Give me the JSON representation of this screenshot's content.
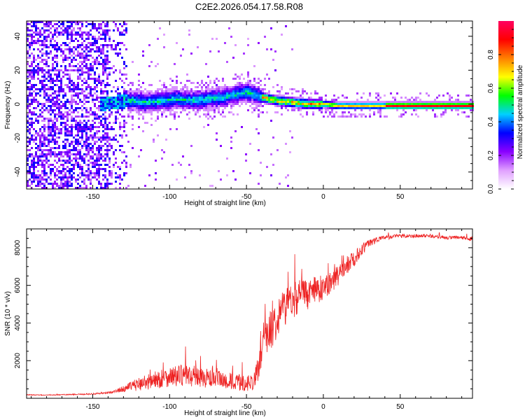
{
  "title": "C2E2.2026.054.17.58.R08",
  "chart_data": [
    {
      "type": "heatmap",
      "xlabel": "Height of straight line (km)",
      "ylabel": "Frequency (Hz)",
      "xlim": [
        -193,
        97
      ],
      "ylim": [
        -50,
        49
      ],
      "xticks": [
        -150,
        -100,
        -50,
        0,
        50
      ],
      "xtick_labels": [
        "-150",
        "-100",
        "-50",
        "0",
        "50"
      ],
      "yticks": [
        -40,
        -20,
        0,
        20,
        40
      ],
      "ytick_labels": [
        "-40",
        "-20",
        "0",
        "20",
        "40"
      ],
      "colorbar": {
        "label": "Normalized spectral amplitude",
        "range": [
          0,
          1
        ],
        "ticks": [
          0,
          0.2,
          0.4,
          0.6,
          0.8
        ],
        "tick_labels": [
          "0.0",
          "0.2",
          "0.4",
          "0.6",
          "0.8"
        ],
        "colormap": [
          "#ffffff",
          "#e0a0ff",
          "#8a00ff",
          "#0000ff",
          "#00d0ff",
          "#00ff00",
          "#ffff00",
          "#ff8000",
          "#ff0000",
          "#ff0060"
        ]
      },
      "centerline": {
        "x": [
          -145,
          -135,
          -125,
          -115,
          -105,
          -95,
          -85,
          -75,
          -65,
          -55,
          -50,
          -45,
          -40,
          -35,
          -30,
          -20,
          -10,
          0,
          10,
          20,
          30,
          40,
          50,
          60,
          70,
          80,
          90,
          97
        ],
        "y": [
          0,
          1,
          2,
          1,
          2,
          3,
          2,
          3,
          4,
          6,
          7,
          6,
          4,
          3,
          2,
          1,
          0,
          0,
          -1,
          -1,
          -1,
          -1,
          -1,
          -1,
          -1,
          -1,
          -1,
          -1
        ]
      }
    },
    {
      "type": "line",
      "xlabel": "Height of straight line (km)",
      "ylabel": "SNR (10 * v/v)",
      "xlim": [
        -193,
        97
      ],
      "ylim": [
        0,
        9000
      ],
      "xticks": [
        -150,
        -100,
        -50,
        0,
        50
      ],
      "xtick_labels": [
        "-150",
        "-100",
        "-50",
        "0",
        "50"
      ],
      "yticks": [
        2000,
        4000,
        6000,
        8000
      ],
      "ytick_labels": [
        "2000",
        "4000",
        "6000",
        "8000"
      ],
      "series": [
        {
          "name": "SNR",
          "color": "#ee2222",
          "x": [
            -193,
            -180,
            -170,
            -160,
            -150,
            -140,
            -135,
            -130,
            -125,
            -120,
            -115,
            -110,
            -105,
            -100,
            -95,
            -90,
            -85,
            -80,
            -75,
            -70,
            -65,
            -60,
            -55,
            -50,
            -45,
            -42,
            -40,
            -38,
            -35,
            -32,
            -30,
            -25,
            -20,
            -15,
            -10,
            -5,
            0,
            5,
            10,
            15,
            20,
            25,
            30,
            35,
            40,
            50,
            60,
            70,
            80,
            90,
            97
          ],
          "y": [
            180,
            160,
            180,
            200,
            220,
            280,
            350,
            450,
            550,
            650,
            750,
            800,
            900,
            1000,
            1000,
            1050,
            1000,
            950,
            900,
            850,
            800,
            750,
            700,
            650,
            800,
            1400,
            2500,
            3100,
            3200,
            3600,
            4100,
            4600,
            4900,
            5200,
            5300,
            5500,
            5700,
            6000,
            6400,
            6900,
            7300,
            7800,
            8200,
            8400,
            8500,
            8600,
            8600,
            8600,
            8500,
            8500,
            8400
          ],
          "noise_amplitude": [
            40,
            40,
            40,
            50,
            60,
            80,
            150,
            250,
            450,
            600,
            700,
            800,
            850,
            900,
            950,
            950,
            900,
            900,
            850,
            800,
            800,
            800,
            750,
            700,
            800,
            1200,
            1500,
            1700,
            1800,
            1800,
            1800,
            1700,
            1600,
            1500,
            1400,
            1200,
            1100,
            1000,
            900,
            800,
            700,
            500,
            350,
            250,
            200,
            180,
            160,
            160,
            160,
            180,
            180
          ]
        }
      ]
    }
  ]
}
